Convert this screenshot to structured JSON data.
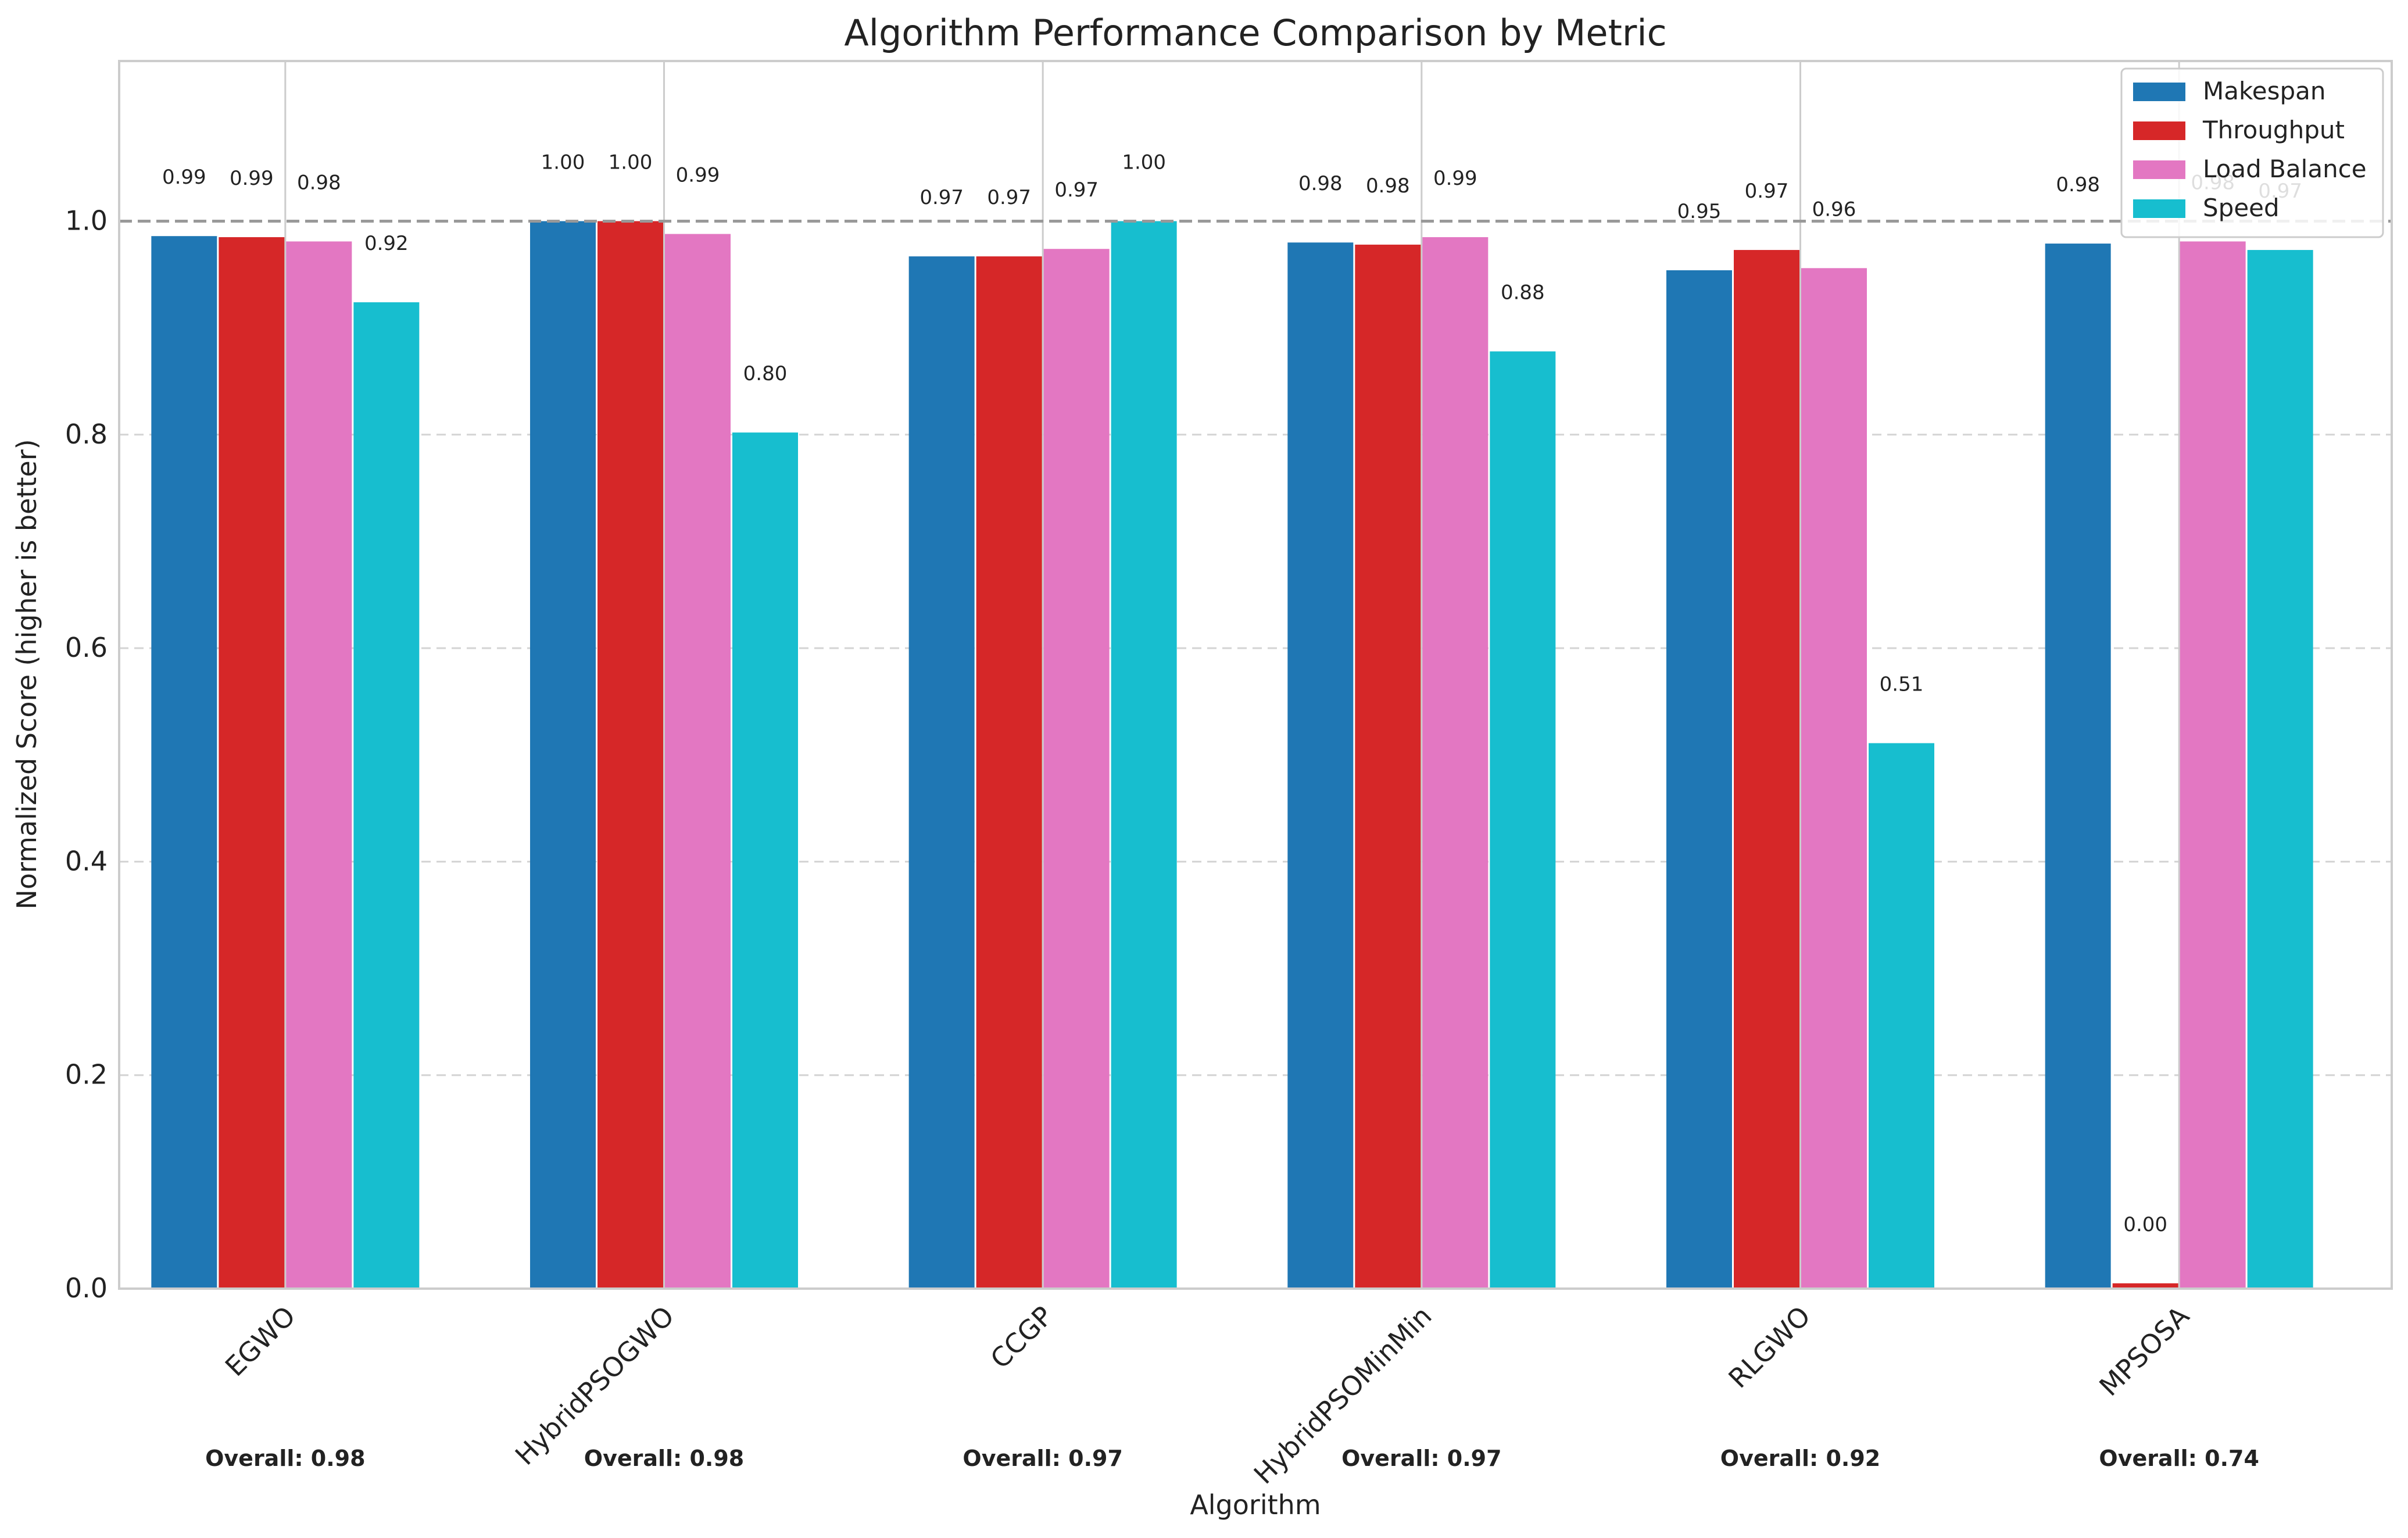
{
  "chart_data": {
    "type": "bar",
    "title": "Algorithm Performance Comparison by Metric",
    "xlabel": "Algorithm",
    "ylabel": "Normalized Score (higher is better)",
    "ylim": [
      0,
      1.15
    ],
    "yticks": [
      0.0,
      0.2,
      0.4,
      0.6,
      0.8,
      1.0
    ],
    "ytick_labels": [
      "0.0",
      "0.2",
      "0.4",
      "0.6",
      "0.8",
      "1.0"
    ],
    "grid": "y-dashed",
    "reference_line": 1.0,
    "categories": [
      "EGWO",
      "HybridPSOGWO",
      "CCGP",
      "HybridPSOMinMin",
      "RLGWO",
      "MPSOSA"
    ],
    "series": [
      {
        "name": "Makespan",
        "color": "#1f77b4",
        "values": [
          0.986,
          1.0,
          0.967,
          0.98,
          0.954,
          0.979
        ],
        "labels": [
          "0.99",
          "1.00",
          "0.97",
          "0.98",
          "0.95",
          "0.98"
        ]
      },
      {
        "name": "Throughput",
        "color": "#d62728",
        "values": [
          0.985,
          1.0,
          0.967,
          0.978,
          0.973,
          0.005
        ],
        "labels": [
          "0.99",
          "1.00",
          "0.97",
          "0.98",
          "0.97",
          "0.00"
        ]
      },
      {
        "name": "Load Balance",
        "color": "#e377c2",
        "values": [
          0.981,
          0.988,
          0.974,
          0.985,
          0.956,
          0.981
        ],
        "labels": [
          "0.98",
          "0.99",
          "0.97",
          "0.99",
          "0.96",
          "0.98"
        ]
      },
      {
        "name": "Speed",
        "color": "#17becf",
        "values": [
          0.924,
          0.802,
          1.0,
          0.878,
          0.511,
          0.973
        ],
        "labels": [
          "0.92",
          "0.80",
          "1.00",
          "0.88",
          "0.51",
          "0.97"
        ]
      }
    ],
    "overall_labels": [
      "Overall: 0.98",
      "Overall: 0.98",
      "Overall: 0.97",
      "Overall: 0.97",
      "Overall: 0.92",
      "Overall: 0.74"
    ],
    "legend_position": "top-right"
  }
}
